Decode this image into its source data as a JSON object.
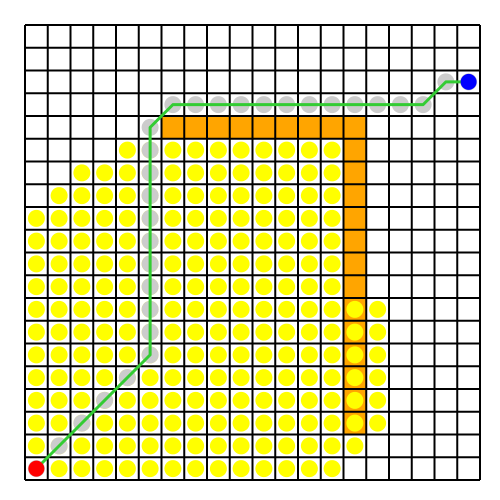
{
  "grid": {
    "rows": 20,
    "cols": 20
  },
  "colors": {
    "background": "#ffffff",
    "grid_line": "#000000",
    "wall": "#ffa500",
    "explored": "#ffff00",
    "path_trace": "#cccccc",
    "path_line": "#33cc33",
    "start": "#ff0000",
    "goal": "#0000ff"
  },
  "start": {
    "row": 19,
    "col": 0
  },
  "goal": {
    "row": 2,
    "col": 19
  },
  "walls": [
    [
      4,
      6
    ],
    [
      4,
      7
    ],
    [
      4,
      8
    ],
    [
      4,
      9
    ],
    [
      4,
      10
    ],
    [
      4,
      11
    ],
    [
      4,
      12
    ],
    [
      4,
      13
    ],
    [
      4,
      14
    ],
    [
      5,
      14
    ],
    [
      6,
      14
    ],
    [
      7,
      14
    ],
    [
      8,
      14
    ],
    [
      9,
      14
    ],
    [
      10,
      14
    ],
    [
      11,
      14
    ],
    [
      12,
      14
    ],
    [
      13,
      14
    ],
    [
      14,
      14
    ],
    [
      15,
      14
    ],
    [
      16,
      14
    ],
    [
      17,
      14
    ]
  ],
  "explored_rows": [
    {
      "row": 5,
      "from": 4,
      "to": 13
    },
    {
      "row": 6,
      "from": 2,
      "to": 13
    },
    {
      "row": 7,
      "from": 1,
      "to": 13
    },
    {
      "row": 8,
      "from": 0,
      "to": 13
    },
    {
      "row": 9,
      "from": 0,
      "to": 13
    },
    {
      "row": 10,
      "from": 0,
      "to": 13
    },
    {
      "row": 11,
      "from": 0,
      "to": 13
    },
    {
      "row": 12,
      "from": 0,
      "to": 15
    },
    {
      "row": 13,
      "from": 0,
      "to": 15
    },
    {
      "row": 14,
      "from": 0,
      "to": 15
    },
    {
      "row": 15,
      "from": 0,
      "to": 15
    },
    {
      "row": 16,
      "from": 0,
      "to": 15
    },
    {
      "row": 17,
      "from": 0,
      "to": 15
    },
    {
      "row": 18,
      "from": 0,
      "to": 14
    },
    {
      "row": 19,
      "from": 1,
      "to": 13
    }
  ],
  "trace_cells": [
    [
      19,
      0
    ],
    [
      18,
      1
    ],
    [
      17,
      2
    ],
    [
      16,
      3
    ],
    [
      15,
      4
    ],
    [
      14,
      5
    ],
    [
      13,
      5
    ],
    [
      12,
      5
    ],
    [
      11,
      5
    ],
    [
      10,
      5
    ],
    [
      9,
      5
    ],
    [
      8,
      5
    ],
    [
      7,
      5
    ],
    [
      6,
      5
    ],
    [
      5,
      5
    ],
    [
      4,
      5
    ],
    [
      3,
      6
    ],
    [
      3,
      7
    ],
    [
      3,
      8
    ],
    [
      3,
      9
    ],
    [
      3,
      10
    ],
    [
      3,
      11
    ],
    [
      3,
      12
    ],
    [
      3,
      13
    ],
    [
      3,
      14
    ],
    [
      3,
      15
    ],
    [
      3,
      16
    ],
    [
      3,
      17
    ],
    [
      2,
      18
    ],
    [
      2,
      19
    ]
  ],
  "path": [
    [
      19,
      0
    ],
    [
      14,
      5
    ],
    [
      4,
      5
    ],
    [
      3,
      6
    ],
    [
      3,
      17
    ],
    [
      2,
      18
    ],
    [
      2,
      19
    ]
  ]
}
